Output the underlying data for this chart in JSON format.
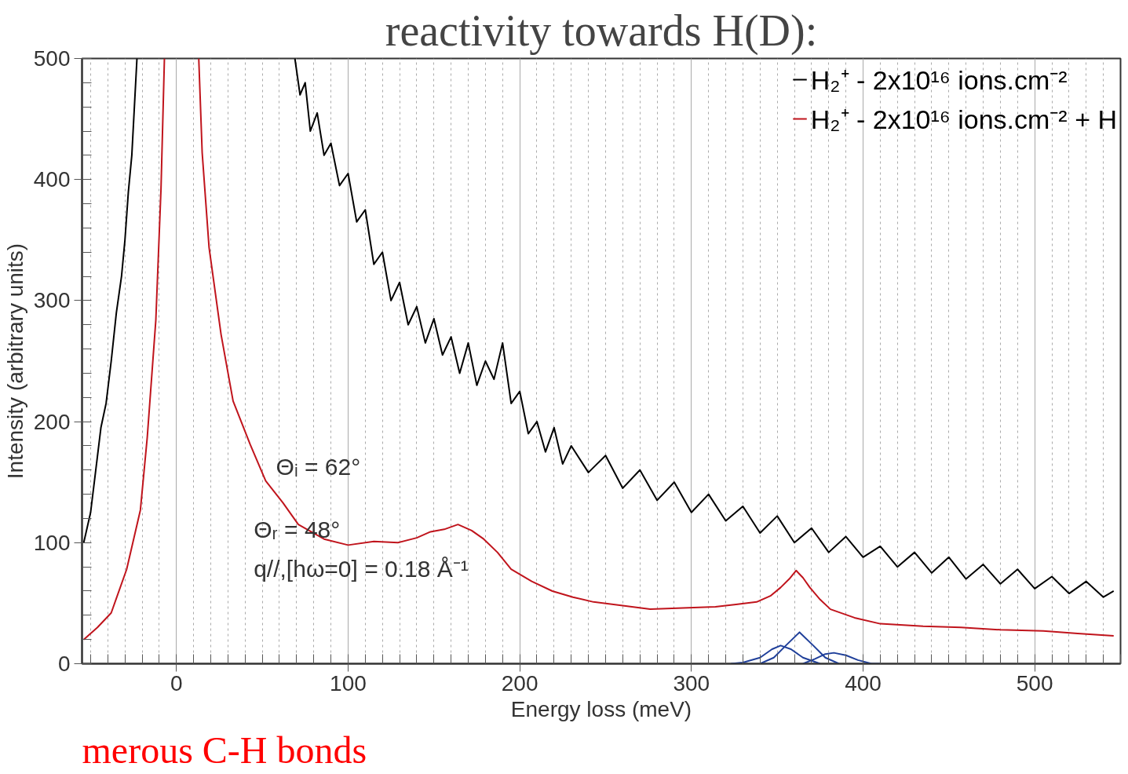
{
  "chart_data": {
    "type": "line",
    "title": "reactivity towards H(D):",
    "xlabel": "Energy loss (meV)",
    "ylabel": "Intensity (arbitrary units)",
    "xlim": [
      -55,
      550
    ],
    "ylim": [
      0,
      500
    ],
    "xticks": [
      0,
      100,
      200,
      300,
      400,
      500
    ],
    "yticks": [
      0,
      100,
      200,
      300,
      400,
      500
    ],
    "grid": "x",
    "legend": "top right",
    "line_style": "solid",
    "annotations": [
      "Θᵢ = 62°",
      "Θᵣ = 48°",
      "q//,[hω=0] = 0.18 Å⁻¹",
      "merous C-H bonds"
    ],
    "series": [
      {
        "name": "H₂⁺ - 2x10¹⁶ ions.cm⁻²",
        "color": "#000000",
        "x": [
          -54,
          -50,
          -47,
          -44,
          -41,
          -38,
          -35,
          -32,
          -30,
          -28,
          -26,
          -23,
          20,
          69,
          72,
          75,
          78,
          82,
          86,
          90,
          95,
          100,
          105,
          110,
          115,
          120,
          125,
          130,
          135,
          140,
          145,
          150,
          155,
          160,
          165,
          170,
          175,
          180,
          185,
          190,
          195,
          200,
          205,
          210,
          215,
          220,
          225,
          230,
          240,
          250,
          260,
          270,
          280,
          290,
          300,
          310,
          320,
          330,
          340,
          350,
          360,
          370,
          380,
          390,
          400,
          410,
          420,
          430,
          440,
          450,
          460,
          470,
          480,
          490,
          500,
          510,
          520,
          530,
          540,
          546
        ],
        "values": [
          100,
          125,
          160,
          195,
          215,
          250,
          290,
          320,
          350,
          390,
          420,
          500,
          null,
          500,
          470,
          480,
          440,
          455,
          420,
          430,
          395,
          405,
          365,
          375,
          330,
          340,
          300,
          315,
          280,
          295,
          265,
          285,
          255,
          270,
          240,
          265,
          230,
          250,
          235,
          265,
          215,
          225,
          190,
          200,
          175,
          195,
          165,
          180,
          158,
          172,
          145,
          160,
          135,
          150,
          125,
          140,
          118,
          130,
          108,
          122,
          100,
          112,
          92,
          105,
          88,
          97,
          80,
          92,
          75,
          88,
          70,
          82,
          66,
          78,
          62,
          72,
          58,
          68,
          55,
          60
        ]
      },
      {
        "name": "H₂⁺ - 2x10¹⁶ ions.cm⁻² + H",
        "color": "#c0141c",
        "x": [
          -54,
          -46,
          -38,
          -29,
          -21,
          -17,
          -12,
          -9,
          -7,
          3,
          13,
          15,
          19,
          26,
          33,
          43,
          52,
          62,
          71,
          86,
          100,
          115,
          129,
          140,
          148,
          156,
          164,
          172,
          179,
          187,
          195,
          207,
          219,
          231,
          243,
          260,
          276,
          295,
          314,
          326,
          338,
          346,
          352,
          357,
          361,
          365,
          369,
          375,
          381,
          395,
          410,
          435,
          457,
          480,
          505,
          525,
          546
        ],
        "values": [
          20,
          30,
          42,
          78,
          127,
          187,
          284,
          392,
          500,
          null,
          500,
          422,
          344,
          272,
          217,
          181,
          151,
          133,
          115,
          103,
          98,
          101,
          100,
          104,
          109,
          111,
          115,
          110,
          103,
          92,
          78,
          68,
          60,
          55,
          51,
          48,
          45,
          46,
          47,
          49,
          51,
          56,
          63,
          70,
          77,
          71,
          63,
          53,
          45,
          38,
          33,
          31,
          30,
          28,
          27,
          25,
          23
        ]
      },
      {
        "color": "#1f3f9a",
        "x": [
          323,
          330,
          340,
          347,
          352,
          358,
          365,
          375
        ],
        "values": [
          0,
          1,
          5,
          12,
          15,
          12,
          5,
          0
        ]
      },
      {
        "color": "#1f3f9a",
        "x": [
          340,
          348,
          355,
          363,
          371,
          378,
          386
        ],
        "values": [
          0,
          5,
          15,
          26,
          15,
          5,
          0
        ]
      },
      {
        "color": "#1f3f9a",
        "x": [
          365,
          372,
          378,
          383,
          390,
          397,
          405,
          410
        ],
        "values": [
          0,
          4,
          8,
          9,
          7,
          3,
          0,
          0
        ]
      }
    ]
  }
}
